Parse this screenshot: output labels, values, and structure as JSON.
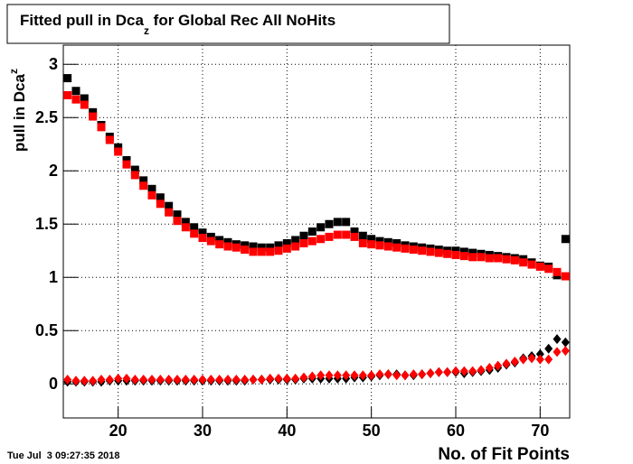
{
  "chart_data": {
    "type": "scatter",
    "title": "Fitted pull in Dca",
    "title_subscript": "z",
    "title_rest": " for Global Rec All NoHits",
    "y_label": "pull in Dca",
    "y_label_subscript": "z",
    "x_label": "No. of Fit Points",
    "timestamp": "Tue Jul  3 09:27:35 2018",
    "x": [
      14,
      15,
      16,
      17,
      18,
      19,
      20,
      21,
      22,
      23,
      24,
      25,
      26,
      27,
      28,
      29,
      30,
      31,
      32,
      33,
      34,
      35,
      36,
      37,
      38,
      39,
      40,
      41,
      42,
      43,
      44,
      45,
      46,
      47,
      48,
      49,
      50,
      51,
      52,
      53,
      54,
      55,
      56,
      57,
      58,
      59,
      60,
      61,
      62,
      63,
      64,
      65,
      66,
      67,
      68,
      69,
      70,
      71,
      72,
      73
    ],
    "xlim": [
      13.5,
      73.5
    ],
    "ylim": [
      -0.32,
      3.18
    ],
    "xticks": [
      20,
      30,
      40,
      50,
      60,
      70
    ],
    "yticks": [
      0,
      0.5,
      1,
      1.5,
      2,
      2.5,
      3
    ],
    "grid": true,
    "series": [
      {
        "color": "#000000",
        "marker": "square",
        "values": [
          2.87,
          2.75,
          2.68,
          2.55,
          2.43,
          2.32,
          2.22,
          2.1,
          2.01,
          1.91,
          1.83,
          1.75,
          1.67,
          1.59,
          1.52,
          1.47,
          1.42,
          1.38,
          1.35,
          1.33,
          1.31,
          1.3,
          1.29,
          1.28,
          1.28,
          1.3,
          1.32,
          1.35,
          1.39,
          1.43,
          1.47,
          1.5,
          1.52,
          1.52,
          1.43,
          1.39,
          1.36,
          1.34,
          1.33,
          1.32,
          1.3,
          1.29,
          1.28,
          1.27,
          1.26,
          1.25,
          1.25,
          1.24,
          1.23,
          1.22,
          1.21,
          1.2,
          1.19,
          1.18,
          1.17,
          1.14,
          1.11,
          1.1,
          1.02,
          1.36
        ]
      },
      {
        "color": "#ff0000",
        "marker": "square",
        "values": [
          2.71,
          2.67,
          2.62,
          2.51,
          2.41,
          2.29,
          2.18,
          2.06,
          1.96,
          1.86,
          1.77,
          1.69,
          1.61,
          1.53,
          1.47,
          1.41,
          1.37,
          1.34,
          1.31,
          1.29,
          1.28,
          1.26,
          1.24,
          1.24,
          1.24,
          1.25,
          1.27,
          1.29,
          1.32,
          1.34,
          1.36,
          1.38,
          1.4,
          1.4,
          1.38,
          1.32,
          1.31,
          1.3,
          1.29,
          1.28,
          1.27,
          1.26,
          1.25,
          1.24,
          1.23,
          1.22,
          1.21,
          1.2,
          1.19,
          1.19,
          1.18,
          1.18,
          1.17,
          1.16,
          1.14,
          1.12,
          1.1,
          1.08,
          1.05,
          1.01
        ]
      },
      {
        "color": "#000000",
        "marker": "diamond",
        "values": [
          0.02,
          0.02,
          0.02,
          0.02,
          0.02,
          0.03,
          0.03,
          0.03,
          0.03,
          0.03,
          0.03,
          0.03,
          0.03,
          0.03,
          0.03,
          0.03,
          0.03,
          0.03,
          0.03,
          0.03,
          0.03,
          0.03,
          0.04,
          0.04,
          0.04,
          0.04,
          0.04,
          0.04,
          0.05,
          0.05,
          0.05,
          0.05,
          0.05,
          0.05,
          0.06,
          0.06,
          0.07,
          0.08,
          0.09,
          0.09,
          0.08,
          0.08,
          0.09,
          0.1,
          0.11,
          0.11,
          0.11,
          0.1,
          0.11,
          0.12,
          0.13,
          0.15,
          0.18,
          0.2,
          0.24,
          0.26,
          0.28,
          0.33,
          0.42,
          0.39
        ]
      },
      {
        "color": "#ff0000",
        "marker": "diamond",
        "values": [
          0.04,
          0.03,
          0.03,
          0.03,
          0.04,
          0.04,
          0.05,
          0.05,
          0.04,
          0.04,
          0.04,
          0.04,
          0.04,
          0.04,
          0.04,
          0.04,
          0.04,
          0.04,
          0.04,
          0.04,
          0.04,
          0.04,
          0.04,
          0.04,
          0.05,
          0.05,
          0.05,
          0.05,
          0.06,
          0.07,
          0.08,
          0.08,
          0.08,
          0.08,
          0.08,
          0.08,
          0.08,
          0.09,
          0.09,
          0.08,
          0.08,
          0.09,
          0.09,
          0.1,
          0.11,
          0.11,
          0.12,
          0.12,
          0.12,
          0.13,
          0.15,
          0.17,
          0.19,
          0.21,
          0.23,
          0.24,
          0.23,
          0.23,
          0.3,
          0.31
        ]
      }
    ]
  }
}
